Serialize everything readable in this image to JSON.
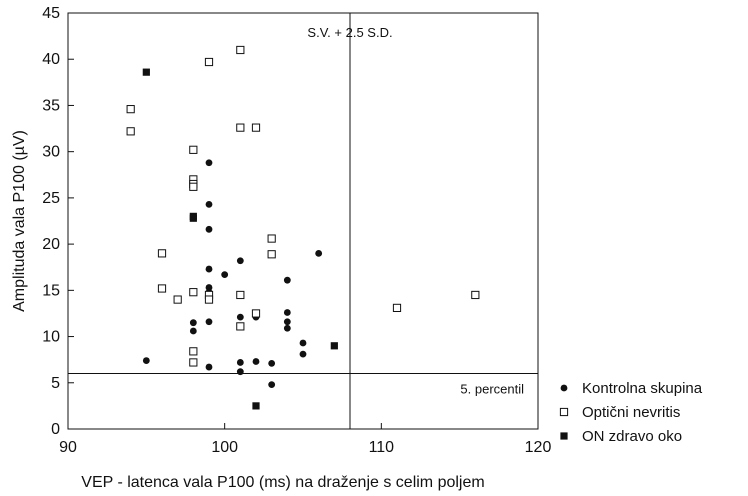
{
  "chart_data": {
    "type": "scatter",
    "xlabel": "VEP - latenca vala P100 (ms) na draženje s celim poljem",
    "ylabel": "Amplituda vala P100 (µV)",
    "xlim": [
      90,
      120
    ],
    "ylim": [
      0,
      45
    ],
    "xticks": [
      90,
      100,
      110,
      120
    ],
    "yticks": [
      0,
      5,
      10,
      15,
      20,
      25,
      30,
      35,
      40,
      45
    ],
    "grid": false,
    "legend_position": "bottom-right",
    "reference_lines": [
      {
        "orientation": "vertical",
        "value": 108,
        "label": "S.V. + 2.5 S.D."
      },
      {
        "orientation": "horizontal",
        "value": 6,
        "label": "5. percentil"
      }
    ],
    "series": [
      {
        "name": "Kontrolna skupina",
        "marker": "filled-circle",
        "points": [
          [
            95,
            7.4
          ],
          [
            98,
            11.5
          ],
          [
            98,
            10.6
          ],
          [
            99,
            28.8
          ],
          [
            99,
            24.3
          ],
          [
            99,
            21.6
          ],
          [
            99,
            17.3
          ],
          [
            99,
            15.3
          ],
          [
            99,
            14.8
          ],
          [
            99,
            14.4
          ],
          [
            99,
            11.6
          ],
          [
            99,
            6.7
          ],
          [
            100,
            16.7
          ],
          [
            101,
            18.2
          ],
          [
            101,
            12.1
          ],
          [
            101,
            7.2
          ],
          [
            101,
            6.2
          ],
          [
            102,
            12.1
          ],
          [
            102,
            7.3
          ],
          [
            103,
            7.1
          ],
          [
            103,
            4.8
          ],
          [
            104,
            16.1
          ],
          [
            104,
            12.6
          ],
          [
            104,
            11.6
          ],
          [
            104,
            10.9
          ],
          [
            105,
            9.3
          ],
          [
            105,
            8.1
          ],
          [
            106,
            19.0
          ]
        ]
      },
      {
        "name": "Optični nevritis",
        "marker": "open-square",
        "points": [
          [
            94,
            34.6
          ],
          [
            94,
            32.2
          ],
          [
            96,
            19.0
          ],
          [
            96,
            15.2
          ],
          [
            97,
            14.0
          ],
          [
            98,
            30.2
          ],
          [
            98,
            27.0
          ],
          [
            98,
            26.5
          ],
          [
            98,
            26.2
          ],
          [
            98,
            14.8
          ],
          [
            98,
            8.4
          ],
          [
            98,
            7.2
          ],
          [
            99,
            39.7
          ],
          [
            99,
            14.5
          ],
          [
            99,
            14.0
          ],
          [
            101,
            41.0
          ],
          [
            101,
            32.6
          ],
          [
            101,
            14.5
          ],
          [
            101,
            11.1
          ],
          [
            102,
            32.6
          ],
          [
            102,
            12.5
          ],
          [
            103,
            20.6
          ],
          [
            103,
            18.9
          ],
          [
            111,
            13.1
          ],
          [
            116,
            14.5
          ]
        ]
      },
      {
        "name": "ON zdravo oko",
        "marker": "filled-square",
        "points": [
          [
            95,
            38.6
          ],
          [
            98,
            23.0
          ],
          [
            98,
            22.8
          ],
          [
            102,
            2.5
          ],
          [
            107,
            9.0
          ]
        ]
      }
    ]
  }
}
